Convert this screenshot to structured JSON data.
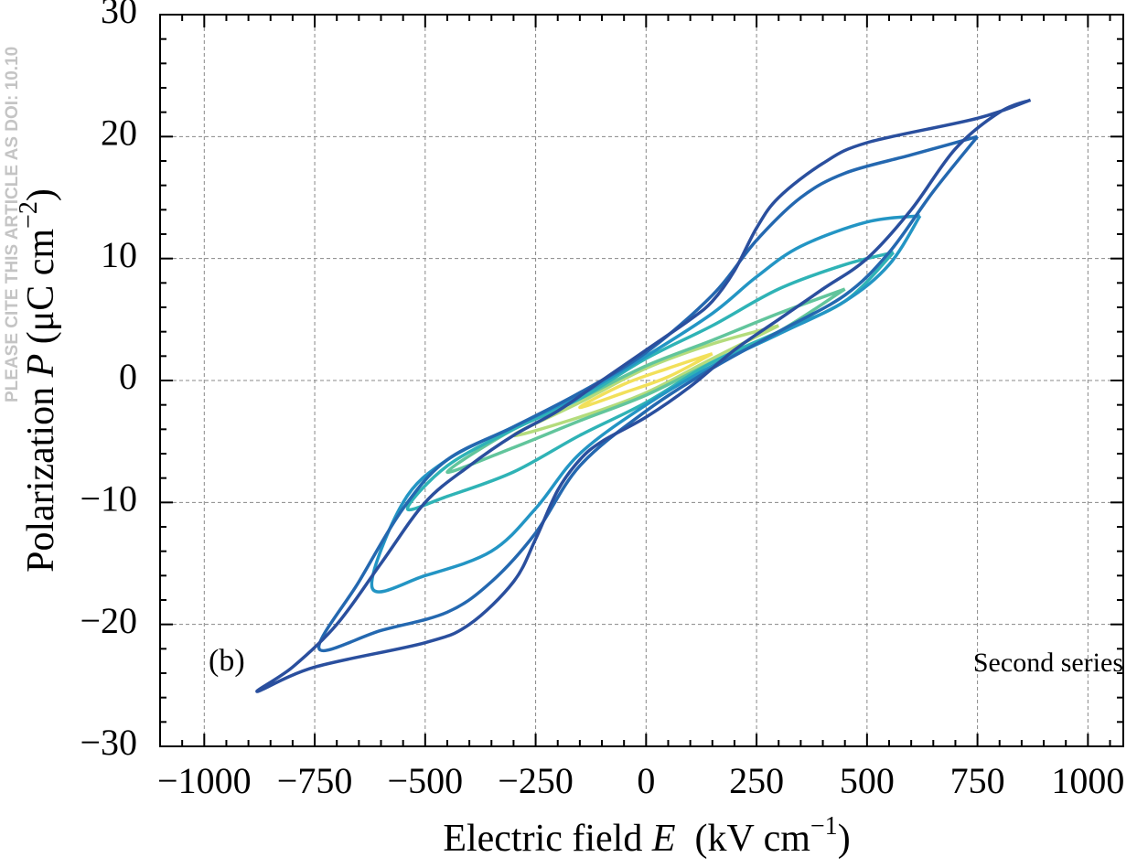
{
  "chart_data": {
    "type": "line",
    "watermark": "PLEASE CITE THIS ARTICLE AS DOI: 10.10",
    "xlabel": [
      "Electric field ",
      "E",
      "  (kV cm",
      "−1",
      ")"
    ],
    "ylabel": [
      "Polarization ",
      "P",
      " (μC cm",
      "−2",
      ")"
    ],
    "annotations": [
      "(b)",
      "Second series"
    ],
    "xlim": [
      -1100,
      1080
    ],
    "ylim": [
      -30,
      30
    ],
    "xticks": [
      {
        "value": -1000,
        "label": "−1000"
      },
      {
        "value": -750,
        "label": "−750"
      },
      {
        "value": -500,
        "label": "−500"
      },
      {
        "value": -250,
        "label": "−250"
      },
      0,
      250,
      500,
      750,
      1000
    ],
    "yticks": [
      {
        "value": -30,
        "label": "−30"
      },
      {
        "value": -20,
        "label": "−20"
      },
      {
        "value": -10,
        "label": "−10"
      },
      0,
      10,
      20,
      30
    ],
    "xminorticks": [
      -1050,
      -950,
      -900,
      -850,
      -800,
      -700,
      -650,
      -600,
      -550,
      -450,
      -400,
      -350,
      -300,
      -200,
      -150,
      -100,
      -50,
      50,
      100,
      150,
      200,
      300,
      350,
      400,
      450,
      550,
      600,
      650,
      700,
      800,
      850,
      900,
      950,
      1050
    ],
    "yminorticks": [
      -28,
      -26,
      -24,
      -22,
      -18,
      -16,
      -14,
      -12,
      -8,
      -6,
      -4,
      -2,
      2,
      4,
      6,
      8,
      12,
      14,
      16,
      18,
      22,
      24,
      26,
      28
    ],
    "grid": true,
    "series": [
      {
        "color": "#f2e05a",
        "x": [
          150,
          50,
          -50,
          -150,
          -50,
          50,
          150
        ],
        "values": [
          2.2,
          1.0,
          -0.3,
          -2.2,
          -1.0,
          0.3,
          2.2
        ]
      },
      {
        "color": "#b4dc7c",
        "x": [
          300,
          150,
          0,
          -150,
          -300,
          -150,
          0,
          150,
          300
        ],
        "values": [
          4.5,
          3.0,
          1.0,
          -1.8,
          -4.5,
          -3.0,
          -1.0,
          1.8,
          4.5
        ]
      },
      {
        "color": "#62c59c",
        "x": [
          450,
          300,
          150,
          0,
          -150,
          -300,
          -450,
          -300,
          -150,
          0,
          150,
          300,
          450
        ],
        "values": [
          7.5,
          5.5,
          3.3,
          1.2,
          -1.5,
          -4,
          -7.5,
          -5.5,
          -3.3,
          -1.2,
          1.5,
          4,
          7.5
        ]
      },
      {
        "color": "#2fb3b6",
        "x": [
          560,
          450,
          300,
          150,
          0,
          -150,
          -300,
          -450,
          -540,
          -450,
          -300,
          -150,
          0,
          150,
          300,
          450,
          560
        ],
        "values": [
          10.5,
          9.5,
          7.5,
          4.5,
          1.8,
          -1.5,
          -4,
          -7,
          -10.5,
          -9.5,
          -7.5,
          -4.5,
          -1.8,
          1.5,
          4,
          6.5,
          10.5
        ]
      },
      {
        "color": "#2395c4",
        "x": [
          620,
          500,
          350,
          250,
          150,
          0,
          -150,
          -300,
          -450,
          -550,
          -620,
          -500,
          -350,
          -250,
          -150,
          0,
          150,
          300,
          450,
          550,
          620
        ],
        "values": [
          13.5,
          13,
          11,
          8.5,
          5.5,
          2,
          -1.2,
          -3.8,
          -6.5,
          -10,
          -17,
          -16,
          -14,
          -10.5,
          -6,
          -2,
          1.2,
          3.8,
          6.5,
          9.5,
          13.5
        ]
      },
      {
        "color": "#2468b0",
        "x": [
          750,
          600,
          450,
          350,
          250,
          150,
          0,
          -150,
          -300,
          -450,
          -550,
          -650,
          -740,
          -600,
          -450,
          -350,
          -250,
          -150,
          0,
          150,
          300,
          450,
          550,
          650,
          750
        ],
        "values": [
          20,
          18.5,
          17,
          15,
          11.5,
          7,
          2.3,
          -1,
          -3.8,
          -6.5,
          -10.5,
          -16.5,
          -22,
          -20.5,
          -19,
          -16.5,
          -12.5,
          -7,
          -2.5,
          1,
          4,
          7,
          10.5,
          15.5,
          20
        ]
      },
      {
        "color": "#2a4f9e",
        "x": [
          870,
          750,
          500,
          400,
          300,
          250,
          200,
          150,
          100,
          0,
          -100,
          -200,
          -300,
          -400,
          -500,
          -600,
          -700,
          -800,
          -880,
          -750,
          -500,
          -400,
          -300,
          -250,
          -200,
          -150,
          -100,
          0,
          100,
          200,
          300,
          400,
          500,
          600,
          700,
          800,
          870
        ],
        "values": [
          23,
          21.5,
          19.5,
          17.8,
          15,
          12.5,
          9,
          6.5,
          5,
          2.5,
          0,
          -2.5,
          -4.5,
          -7,
          -10,
          -15,
          -20,
          -23.5,
          -25.5,
          -23.5,
          -21.5,
          -20,
          -16.5,
          -13,
          -9,
          -6.5,
          -5,
          -3,
          -0.5,
          2.5,
          5,
          7.5,
          10,
          14,
          19,
          22,
          23
        ]
      }
    ]
  }
}
